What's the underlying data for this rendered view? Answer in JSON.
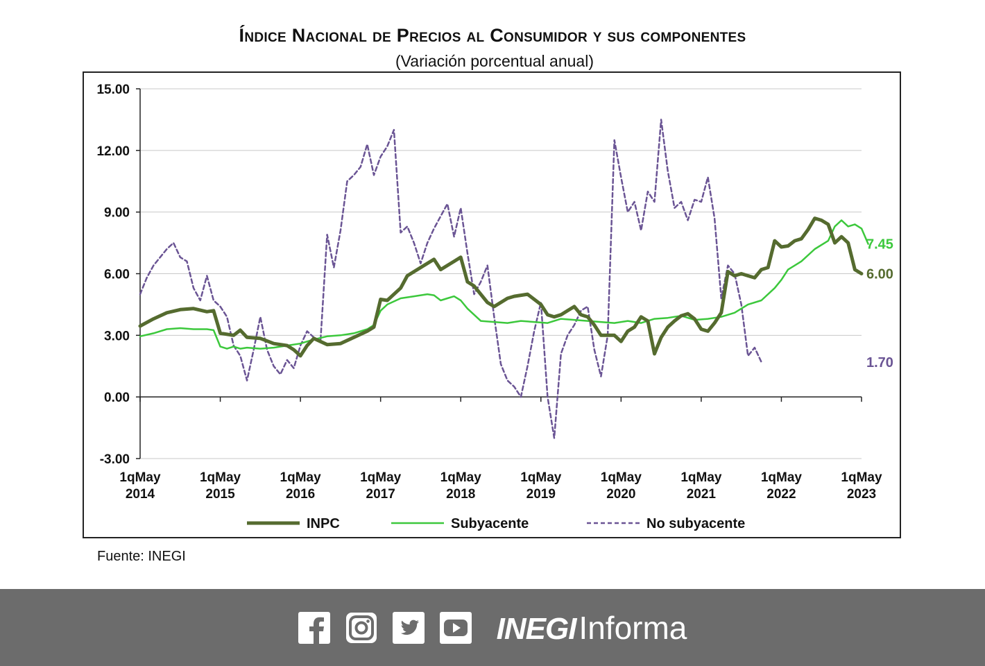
{
  "header": {
    "title": "Índice Nacional de Precios al Consumidor y sus componentes",
    "subtitle": "(Variación porcentual anual)"
  },
  "source": "Fuente: INEGI",
  "footer": {
    "brand_bold": "INEGI",
    "brand_light": "Informa",
    "icons": [
      "facebook-icon",
      "instagram-icon",
      "twitter-icon",
      "youtube-icon"
    ],
    "background": "#6c6c6c"
  },
  "chart_data": {
    "type": "line",
    "title": "Índice Nacional de Precios al Consumidor y sus componentes",
    "subtitle": "(Variación porcentual anual)",
    "ylim": [
      -3,
      15
    ],
    "yticks": [
      "15.00",
      "12.00",
      "9.00",
      "6.00",
      "3.00",
      "0.00",
      "-3.00"
    ],
    "xlim": [
      0,
      108
    ],
    "xticks": [
      {
        "x": 0,
        "l1": "1qMay",
        "l2": "2014"
      },
      {
        "x": 12,
        "l1": "1qMay",
        "l2": "2015"
      },
      {
        "x": 24,
        "l1": "1qMay",
        "l2": "2016"
      },
      {
        "x": 36,
        "l1": "1qMay",
        "l2": "2017"
      },
      {
        "x": 48,
        "l1": "1qMay",
        "l2": "2018"
      },
      {
        "x": 60,
        "l1": "1qMay",
        "l2": "2019"
      },
      {
        "x": 72,
        "l1": "1qMay",
        "l2": "2020"
      },
      {
        "x": 84,
        "l1": "1qMay",
        "l2": "2021"
      },
      {
        "x": 96,
        "l1": "1qMay",
        "l2": "2022"
      },
      {
        "x": 108,
        "l1": "1qMay",
        "l2": "2023"
      }
    ],
    "grid": true,
    "legend_position": "bottom",
    "series": [
      {
        "name": "INPC",
        "color": "#556b2f",
        "style": "solid-thick",
        "end_label": "6.00",
        "points": [
          [
            0,
            3.45
          ],
          [
            2,
            3.8
          ],
          [
            4,
            4.1
          ],
          [
            6,
            4.25
          ],
          [
            8,
            4.3
          ],
          [
            10,
            4.15
          ],
          [
            11,
            4.2
          ],
          [
            12,
            3.1
          ],
          [
            14,
            3.0
          ],
          [
            15,
            3.25
          ],
          [
            16,
            2.9
          ],
          [
            18,
            2.85
          ],
          [
            20,
            2.6
          ],
          [
            22,
            2.5
          ],
          [
            23,
            2.3
          ],
          [
            24,
            2.0
          ],
          [
            25,
            2.5
          ],
          [
            26,
            2.85
          ],
          [
            28,
            2.55
          ],
          [
            30,
            2.6
          ],
          [
            32,
            2.9
          ],
          [
            34,
            3.2
          ],
          [
            35,
            3.4
          ],
          [
            36,
            4.75
          ],
          [
            37,
            4.7
          ],
          [
            39,
            5.3
          ],
          [
            40,
            5.9
          ],
          [
            42,
            6.3
          ],
          [
            44,
            6.7
          ],
          [
            45,
            6.2
          ],
          [
            47,
            6.6
          ],
          [
            48,
            6.8
          ],
          [
            49,
            5.6
          ],
          [
            50,
            5.4
          ],
          [
            52,
            4.6
          ],
          [
            53,
            4.4
          ],
          [
            55,
            4.8
          ],
          [
            56,
            4.9
          ],
          [
            58,
            5.0
          ],
          [
            60,
            4.5
          ],
          [
            61,
            4.0
          ],
          [
            62,
            3.9
          ],
          [
            63,
            4.0
          ],
          [
            64,
            4.2
          ],
          [
            65,
            4.4
          ],
          [
            66,
            4.0
          ],
          [
            67,
            3.9
          ],
          [
            68,
            3.5
          ],
          [
            69,
            3.0
          ],
          [
            70,
            3.0
          ],
          [
            71,
            3.0
          ],
          [
            72,
            2.7
          ],
          [
            73,
            3.2
          ],
          [
            74,
            3.4
          ],
          [
            75,
            3.9
          ],
          [
            76,
            3.7
          ],
          [
            77,
            2.1
          ],
          [
            78,
            2.9
          ],
          [
            79,
            3.4
          ],
          [
            80,
            3.7
          ],
          [
            81,
            3.95
          ],
          [
            82,
            4.05
          ],
          [
            83,
            3.8
          ],
          [
            84,
            3.3
          ],
          [
            85,
            3.2
          ],
          [
            86,
            3.6
          ],
          [
            87,
            4.1
          ],
          [
            88,
            6.1
          ],
          [
            89,
            5.9
          ],
          [
            90,
            6.0
          ],
          [
            91,
            5.9
          ],
          [
            92,
            5.8
          ],
          [
            93,
            6.2
          ],
          [
            94,
            6.3
          ],
          [
            95,
            7.6
          ],
          [
            96,
            7.3
          ],
          [
            97,
            7.35
          ],
          [
            98,
            7.6
          ],
          [
            99,
            7.7
          ],
          [
            100,
            8.15
          ],
          [
            101,
            8.7
          ],
          [
            102,
            8.6
          ],
          [
            103,
            8.4
          ],
          [
            104,
            7.5
          ],
          [
            105,
            7.8
          ],
          [
            106,
            7.5
          ],
          [
            107,
            6.2
          ],
          [
            108,
            6.0
          ]
        ]
      },
      {
        "name": "Subyacente",
        "color": "#3cc83c",
        "style": "solid",
        "end_label": "7.45",
        "points": [
          [
            0,
            2.95
          ],
          [
            2,
            3.1
          ],
          [
            4,
            3.3
          ],
          [
            6,
            3.35
          ],
          [
            8,
            3.3
          ],
          [
            10,
            3.3
          ],
          [
            11,
            3.25
          ],
          [
            12,
            2.45
          ],
          [
            13,
            2.35
          ],
          [
            14,
            2.45
          ],
          [
            15,
            2.35
          ],
          [
            16,
            2.4
          ],
          [
            18,
            2.35
          ],
          [
            20,
            2.4
          ],
          [
            22,
            2.5
          ],
          [
            24,
            2.6
          ],
          [
            26,
            2.8
          ],
          [
            28,
            2.95
          ],
          [
            30,
            3.0
          ],
          [
            32,
            3.1
          ],
          [
            34,
            3.3
          ],
          [
            35,
            3.5
          ],
          [
            36,
            4.2
          ],
          [
            37,
            4.5
          ],
          [
            39,
            4.8
          ],
          [
            41,
            4.9
          ],
          [
            43,
            5.0
          ],
          [
            44,
            4.95
          ],
          [
            45,
            4.7
          ],
          [
            46,
            4.8
          ],
          [
            47,
            4.9
          ],
          [
            48,
            4.7
          ],
          [
            49,
            4.3
          ],
          [
            50,
            4.0
          ],
          [
            51,
            3.7
          ],
          [
            53,
            3.65
          ],
          [
            55,
            3.6
          ],
          [
            57,
            3.7
          ],
          [
            59,
            3.65
          ],
          [
            61,
            3.6
          ],
          [
            63,
            3.8
          ],
          [
            65,
            3.75
          ],
          [
            67,
            3.7
          ],
          [
            69,
            3.65
          ],
          [
            71,
            3.6
          ],
          [
            73,
            3.7
          ],
          [
            75,
            3.6
          ],
          [
            77,
            3.8
          ],
          [
            79,
            3.85
          ],
          [
            81,
            3.95
          ],
          [
            83,
            3.75
          ],
          [
            85,
            3.8
          ],
          [
            87,
            3.9
          ],
          [
            89,
            4.1
          ],
          [
            91,
            4.5
          ],
          [
            93,
            4.7
          ],
          [
            95,
            5.3
          ],
          [
            96,
            5.7
          ],
          [
            97,
            6.2
          ],
          [
            99,
            6.6
          ],
          [
            101,
            7.2
          ],
          [
            103,
            7.6
          ],
          [
            104,
            8.3
          ],
          [
            105,
            8.6
          ],
          [
            106,
            8.3
          ],
          [
            107,
            8.4
          ],
          [
            108,
            8.2
          ],
          [
            109,
            7.45
          ]
        ]
      },
      {
        "name": "No subyacente",
        "color": "#6a5494",
        "style": "dashed",
        "end_label": "1.70",
        "points": [
          [
            0,
            5.0
          ],
          [
            1,
            5.8
          ],
          [
            2,
            6.4
          ],
          [
            3,
            6.8
          ],
          [
            4,
            7.2
          ],
          [
            5,
            7.5
          ],
          [
            6,
            6.8
          ],
          [
            7,
            6.6
          ],
          [
            8,
            5.3
          ],
          [
            9,
            4.7
          ],
          [
            10,
            5.9
          ],
          [
            11,
            4.7
          ],
          [
            12,
            4.4
          ],
          [
            13,
            3.9
          ],
          [
            14,
            2.5
          ],
          [
            15,
            2.0
          ],
          [
            16,
            0.8
          ],
          [
            17,
            2.3
          ],
          [
            18,
            3.9
          ],
          [
            19,
            2.3
          ],
          [
            20,
            1.5
          ],
          [
            21,
            1.1
          ],
          [
            22,
            1.8
          ],
          [
            23,
            1.4
          ],
          [
            24,
            2.5
          ],
          [
            25,
            3.2
          ],
          [
            26,
            2.9
          ],
          [
            27,
            2.7
          ],
          [
            28,
            7.9
          ],
          [
            29,
            6.3
          ],
          [
            30,
            8.1
          ],
          [
            31,
            10.5
          ],
          [
            32,
            10.8
          ],
          [
            33,
            11.2
          ],
          [
            34,
            12.3
          ],
          [
            35,
            10.8
          ],
          [
            36,
            11.7
          ],
          [
            37,
            12.2
          ],
          [
            38,
            13.0
          ],
          [
            39,
            8.0
          ],
          [
            40,
            8.3
          ],
          [
            41,
            7.5
          ],
          [
            42,
            6.5
          ],
          [
            43,
            7.5
          ],
          [
            44,
            8.2
          ],
          [
            45,
            8.8
          ],
          [
            46,
            9.4
          ],
          [
            47,
            7.8
          ],
          [
            48,
            9.2
          ],
          [
            49,
            7.0
          ],
          [
            50,
            5.0
          ],
          [
            51,
            5.6
          ],
          [
            52,
            6.4
          ],
          [
            53,
            3.9
          ],
          [
            54,
            1.6
          ],
          [
            55,
            0.8
          ],
          [
            56,
            0.5
          ],
          [
            57,
            0.0
          ],
          [
            58,
            1.5
          ],
          [
            59,
            3.2
          ],
          [
            60,
            4.6
          ],
          [
            61,
            0.0
          ],
          [
            62,
            -2.0
          ],
          [
            63,
            2.1
          ],
          [
            64,
            3.0
          ],
          [
            65,
            3.5
          ],
          [
            66,
            4.2
          ],
          [
            67,
            4.4
          ],
          [
            68,
            2.3
          ],
          [
            69,
            1.0
          ],
          [
            70,
            3.0
          ],
          [
            71,
            12.5
          ],
          [
            72,
            10.7
          ],
          [
            73,
            9.0
          ],
          [
            74,
            9.5
          ],
          [
            75,
            8.1
          ],
          [
            76,
            10.0
          ],
          [
            77,
            9.5
          ],
          [
            78,
            13.5
          ],
          [
            79,
            11.0
          ],
          [
            80,
            9.2
          ],
          [
            81,
            9.5
          ],
          [
            82,
            8.6
          ],
          [
            83,
            9.6
          ],
          [
            84,
            9.5
          ],
          [
            85,
            10.7
          ],
          [
            86,
            8.7
          ],
          [
            87,
            4.8
          ],
          [
            88,
            6.4
          ],
          [
            89,
            6.0
          ],
          [
            90,
            4.5
          ],
          [
            91,
            2.0
          ],
          [
            92,
            2.4
          ],
          [
            93,
            1.7
          ]
        ]
      }
    ]
  }
}
